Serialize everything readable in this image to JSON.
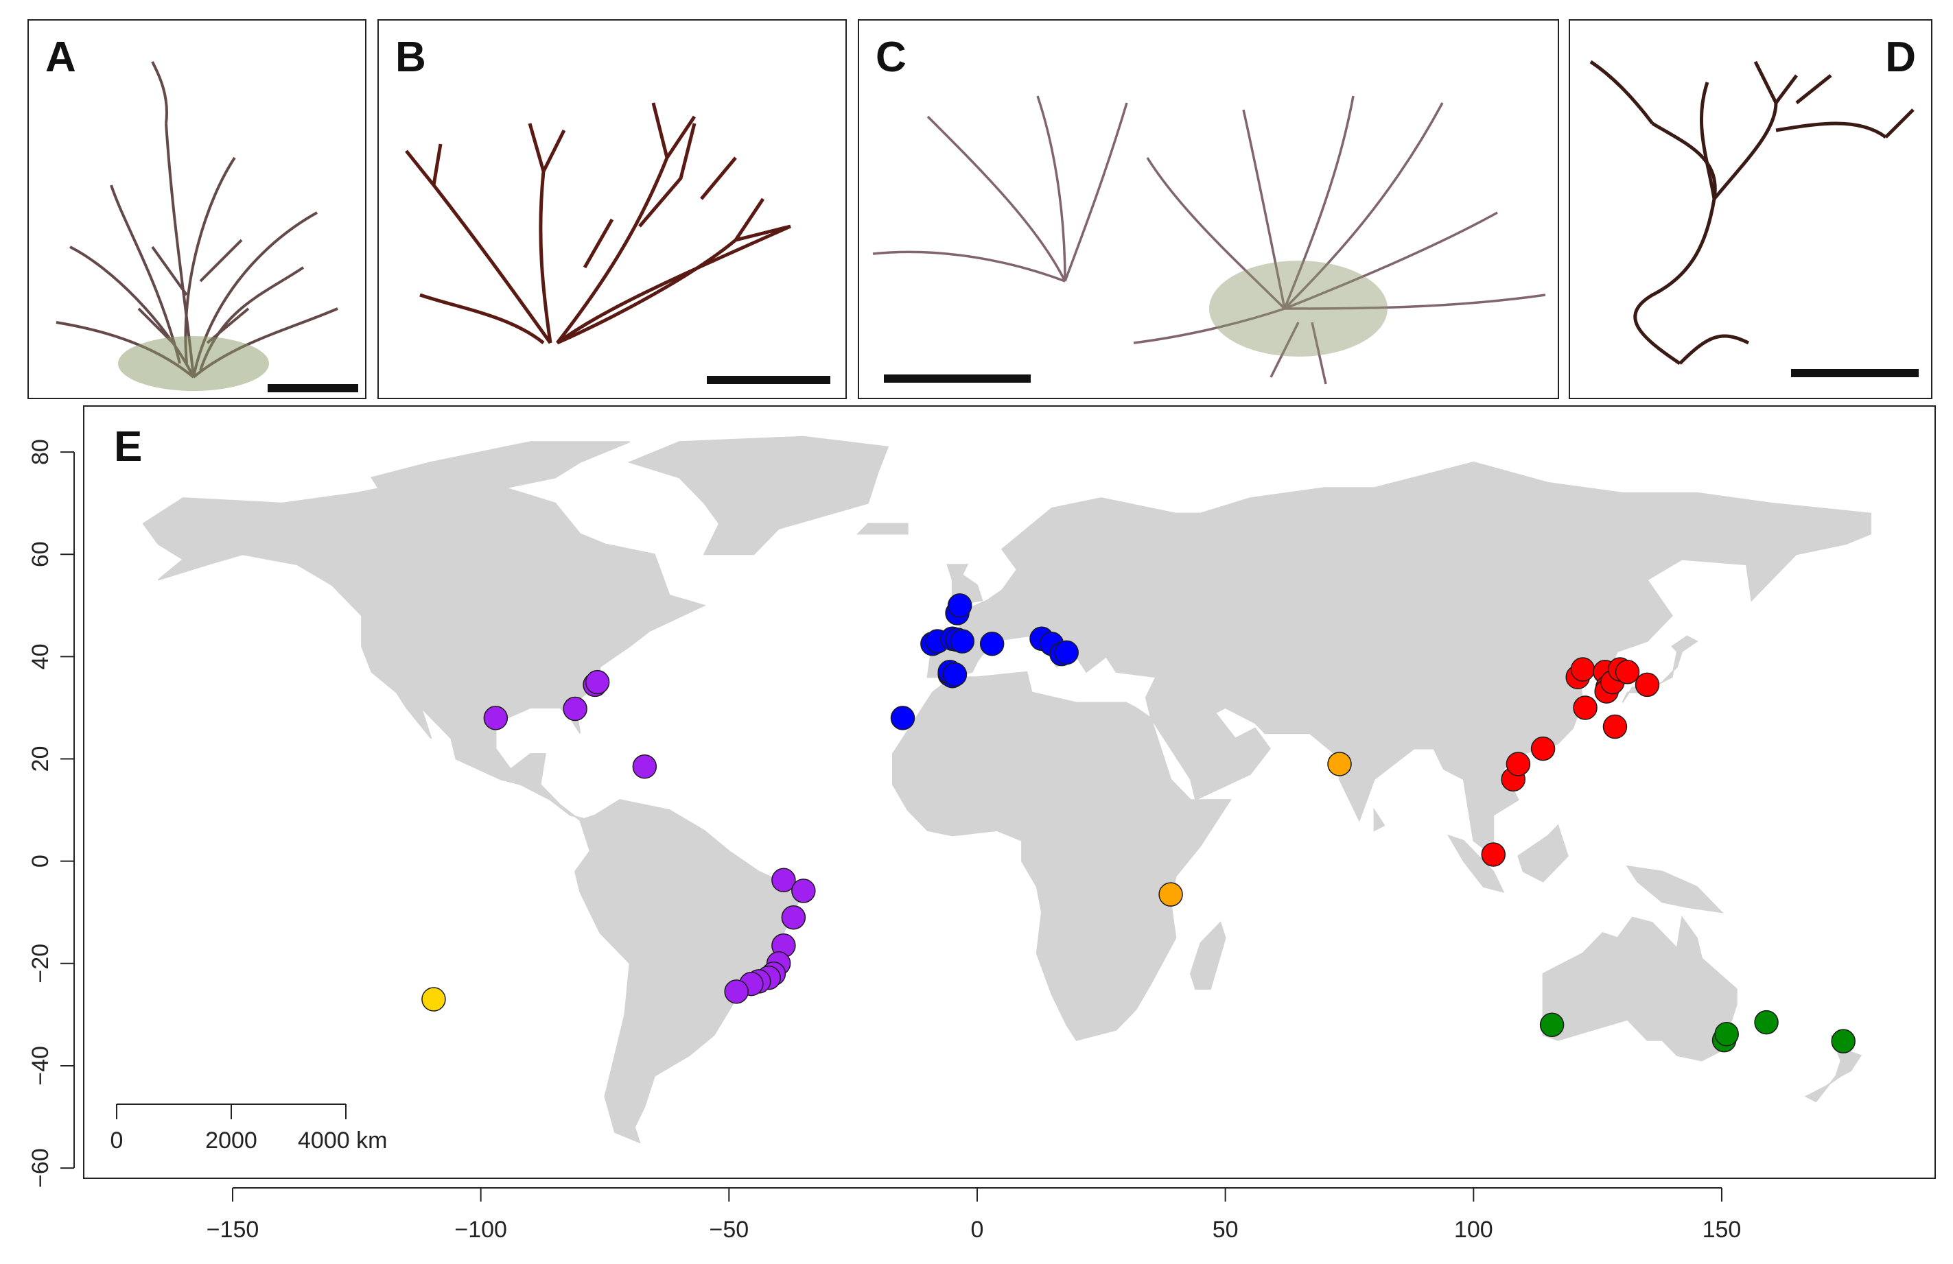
{
  "panels": [
    {
      "label": "A"
    },
    {
      "label": "B"
    },
    {
      "label": "C"
    },
    {
      "label": "D"
    }
  ],
  "map": {
    "label": "E",
    "scale_bar": {
      "ticks": [
        "0",
        "2000",
        "4000 km"
      ]
    },
    "x_ticks": [
      -150,
      -100,
      -50,
      0,
      50,
      100,
      150
    ],
    "y_ticks": [
      80,
      60,
      40,
      20,
      0,
      -20,
      -40,
      -60
    ],
    "xlim": [
      -180,
      193
    ],
    "ylim": [
      -62,
      89
    ],
    "land_color": "#d3d3d3",
    "groups": [
      {
        "color": "#0000ff",
        "points": [
          [
            -15,
            28
          ],
          [
            -9,
            42.5
          ],
          [
            -8,
            43
          ],
          [
            -5,
            43.5
          ],
          [
            -4,
            43.3
          ],
          [
            -3,
            43
          ],
          [
            -4,
            48.5
          ],
          [
            -3.5,
            50
          ],
          [
            -5.5,
            36.5
          ],
          [
            -5,
            36.2
          ],
          [
            -5.5,
            37
          ],
          [
            -4.5,
            36.5
          ],
          [
            3,
            42.5
          ],
          [
            13,
            43.5
          ],
          [
            15,
            42.5
          ],
          [
            17,
            40.5
          ],
          [
            18,
            40.8
          ]
        ]
      },
      {
        "color": "#a020f0",
        "points": [
          [
            -97,
            28
          ],
          [
            -81,
            29.8
          ],
          [
            -77,
            34.5
          ],
          [
            -76.5,
            35
          ],
          [
            -67,
            18.5
          ],
          [
            -39,
            -3.7
          ],
          [
            -35,
            -5.8
          ],
          [
            -37,
            -11
          ],
          [
            -39,
            -16.5
          ],
          [
            -40,
            -20
          ],
          [
            -41,
            -22
          ],
          [
            -42,
            -22.8
          ],
          [
            -44,
            -23.5
          ],
          [
            -45.5,
            -24
          ],
          [
            -48.5,
            -25.5
          ]
        ]
      },
      {
        "color": "#ff0000",
        "points": [
          [
            104,
            1.3
          ],
          [
            108,
            16
          ],
          [
            109,
            19
          ],
          [
            114,
            22
          ],
          [
            121,
            36
          ],
          [
            122,
            37.5
          ],
          [
            122.5,
            30
          ],
          [
            126.5,
            37
          ],
          [
            127,
            34
          ],
          [
            126.8,
            33.2
          ],
          [
            128,
            35
          ],
          [
            128.5,
            26.3
          ],
          [
            129.5,
            37.5
          ],
          [
            131,
            37
          ],
          [
            135,
            34.5
          ]
        ]
      },
      {
        "color": "#ffa500",
        "points": [
          [
            73,
            19
          ],
          [
            39,
            -6.5
          ]
        ]
      },
      {
        "color": "#ffd700",
        "points": [
          [
            -109.5,
            -27
          ]
        ]
      },
      {
        "color": "#008b00",
        "points": [
          [
            115.8,
            -32
          ],
          [
            150.5,
            -35
          ],
          [
            151,
            -33.8
          ],
          [
            159,
            -31.5
          ],
          [
            174.5,
            -35.2
          ]
        ]
      }
    ]
  }
}
